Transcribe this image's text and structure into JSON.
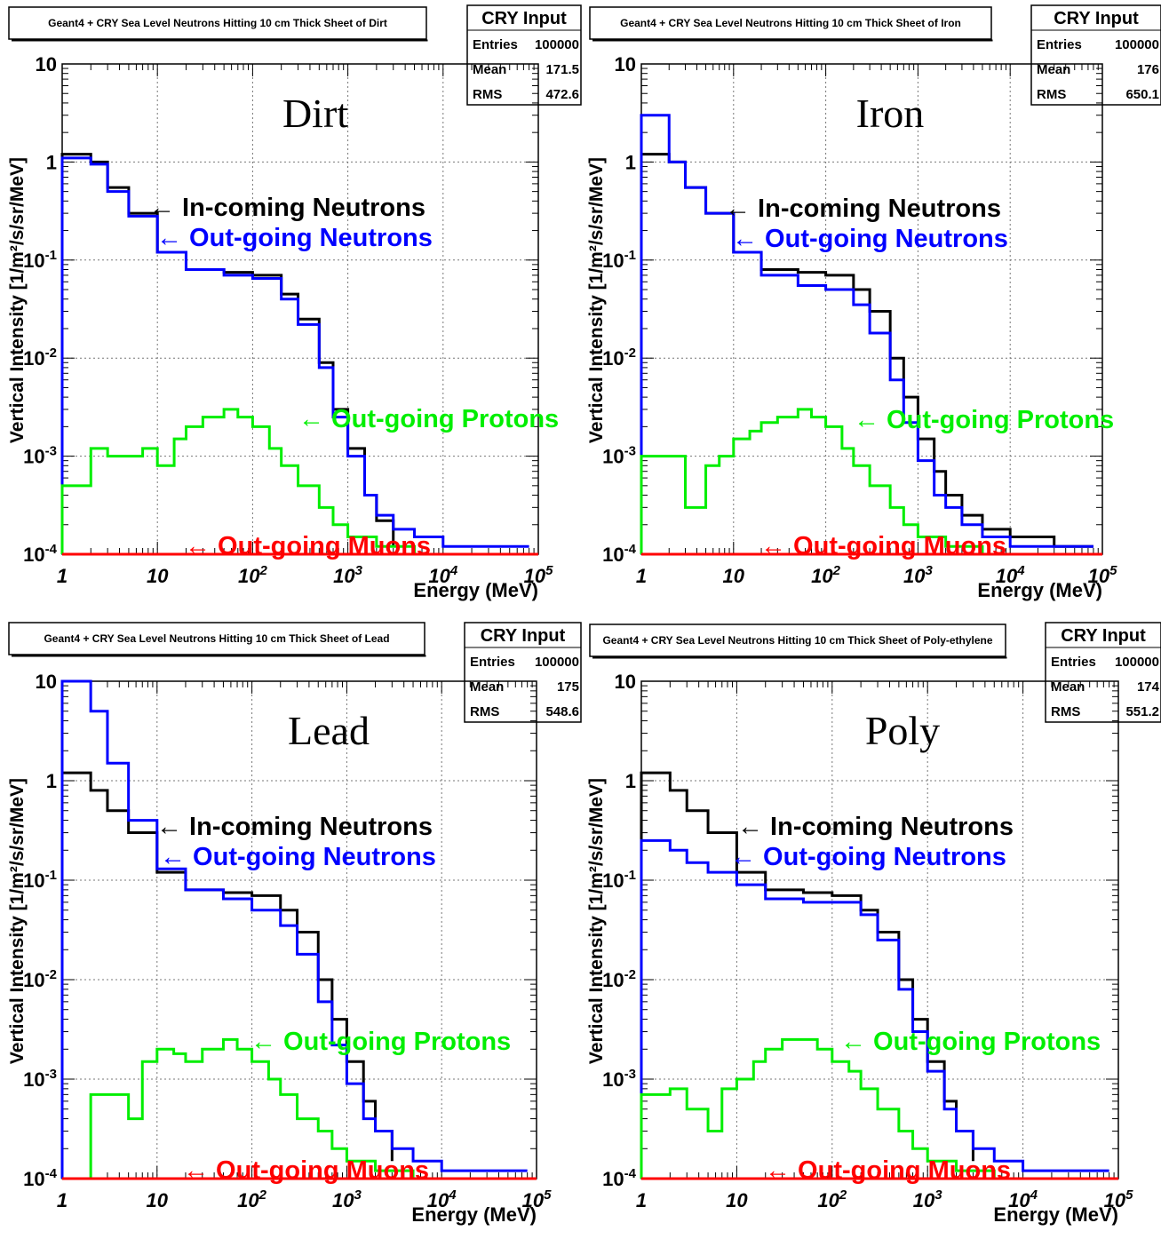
{
  "colors": {
    "incoming": "#000000",
    "outgoing_neutrons": "#0000ff",
    "outgoing_protons": "#00ee00",
    "outgoing_muons": "#ff0000",
    "grid": "#777777",
    "frame": "#000000"
  },
  "chart_data": [
    {
      "type": "line",
      "id": "dirt",
      "title": "Geant4 + CRY Sea Level Neutrons Hitting 10 cm Thick Sheet of Dirt",
      "material": "Dirt",
      "stats": {
        "header": "CRY Input",
        "entries_label": "Entries",
        "entries": "100000",
        "mean_label": "Mean",
        "mean": "171.5",
        "rms_label": "RMS",
        "rms": "472.6"
      },
      "xlabel": "Energy (MeV)",
      "ylabel": "Vertical Intensity [1/m²/s/sr/MeV]",
      "x_scale": "log",
      "y_scale": "log",
      "xlim": [
        1,
        100000
      ],
      "ylim": [
        0.0001,
        10
      ],
      "x_ticks": [
        {
          "base": "1",
          "exp": ""
        },
        {
          "base": "10",
          "exp": ""
        },
        {
          "base": "10",
          "exp": "2"
        },
        {
          "base": "10",
          "exp": "3"
        },
        {
          "base": "10",
          "exp": "4"
        },
        {
          "base": "10",
          "exp": "5"
        }
      ],
      "y_ticks": [
        {
          "base": "10",
          "exp": ""
        },
        {
          "base": "1",
          "exp": ""
        },
        {
          "base": "10",
          "exp": "-1"
        },
        {
          "base": "10",
          "exp": "-2"
        },
        {
          "base": "10",
          "exp": "-3"
        },
        {
          "base": "10",
          "exp": "-4"
        }
      ],
      "grid": true,
      "annotations": {
        "incoming": "← In-coming Neutrons",
        "neutrons": "← Out-going Neutrons",
        "protons": "← Out-going Protons",
        "muons": "← Out-going Muons"
      },
      "series": [
        {
          "key": "incoming",
          "x": [
            1,
            2,
            3,
            5,
            10,
            20,
            50,
            100,
            200,
            300,
            500,
            700,
            1000,
            1500,
            2000,
            3000
          ],
          "y": [
            1.2,
            1.0,
            0.55,
            0.3,
            0.12,
            0.08,
            0.075,
            0.07,
            0.045,
            0.025,
            0.009,
            0.003,
            0.0012,
            0.0004,
            0.00022,
            0.00012
          ]
        },
        {
          "key": "neutrons",
          "x": [
            1,
            2,
            3,
            5,
            10,
            20,
            50,
            100,
            200,
            300,
            500,
            700,
            1000,
            1500,
            2000,
            3000,
            5000,
            10000,
            30000,
            80000
          ],
          "y": [
            1.1,
            0.95,
            0.5,
            0.28,
            0.12,
            0.08,
            0.07,
            0.065,
            0.04,
            0.022,
            0.008,
            0.0025,
            0.001,
            0.0004,
            0.00025,
            0.00018,
            0.00015,
            0.00012,
            0.00012,
            0.00012
          ]
        },
        {
          "key": "protons",
          "x": [
            1,
            2,
            3,
            5,
            7,
            10,
            15,
            20,
            30,
            50,
            70,
            100,
            150,
            200,
            300,
            500,
            700,
            1000,
            2000,
            5000,
            20000,
            100000
          ],
          "y": [
            0.0005,
            0.0012,
            0.001,
            0.001,
            0.0012,
            0.0008,
            0.0015,
            0.002,
            0.0025,
            0.003,
            0.0025,
            0.002,
            0.0012,
            0.0008,
            0.0005,
            0.0003,
            0.0002,
            0.00015,
            0.00012,
            0.0001,
            0.0001,
            0.0001
          ]
        },
        {
          "key": "muons",
          "x": [
            1,
            100000
          ],
          "y": [
            0.0001,
            0.0001
          ]
        }
      ]
    },
    {
      "type": "line",
      "id": "iron",
      "title": "Geant4 + CRY Sea Level Neutrons Hitting 10 cm Thick Sheet of Iron",
      "material": "Iron",
      "stats": {
        "header": "CRY Input",
        "entries_label": "Entries",
        "entries": "100000",
        "mean_label": "Mean",
        "mean": "176",
        "rms_label": "RMS",
        "rms": "650.1"
      },
      "xlabel": "Energy (MeV)",
      "ylabel": "Vertical Intensity [1/m²/s/sr/MeV]",
      "x_scale": "log",
      "y_scale": "log",
      "xlim": [
        1,
        100000
      ],
      "ylim": [
        0.0001,
        10
      ],
      "x_ticks": [
        {
          "base": "1",
          "exp": ""
        },
        {
          "base": "10",
          "exp": ""
        },
        {
          "base": "10",
          "exp": "2"
        },
        {
          "base": "10",
          "exp": "3"
        },
        {
          "base": "10",
          "exp": "4"
        },
        {
          "base": "10",
          "exp": "5"
        }
      ],
      "y_ticks": [
        {
          "base": "10",
          "exp": ""
        },
        {
          "base": "1",
          "exp": ""
        },
        {
          "base": "10",
          "exp": "-1"
        },
        {
          "base": "10",
          "exp": "-2"
        },
        {
          "base": "10",
          "exp": "-3"
        },
        {
          "base": "10",
          "exp": "-4"
        }
      ],
      "grid": true,
      "annotations": {
        "incoming": "← In-coming Neutrons",
        "neutrons": "← Out-going Neutrons",
        "protons": "← Out-going Protons",
        "muons": "← Out-going Muons"
      },
      "series": [
        {
          "key": "incoming",
          "x": [
            1,
            2,
            3,
            5,
            10,
            20,
            50,
            100,
            200,
            300,
            500,
            700,
            1000,
            1500,
            2000,
            3000,
            5000,
            10000,
            30000,
            80000
          ],
          "y": [
            1.2,
            1.0,
            0.55,
            0.3,
            0.12,
            0.08,
            0.075,
            0.07,
            0.05,
            0.03,
            0.01,
            0.004,
            0.0015,
            0.0007,
            0.0004,
            0.00025,
            0.00018,
            0.00015,
            0.00012,
            0.00012
          ]
        },
        {
          "key": "neutrons",
          "x": [
            1,
            2,
            3,
            5,
            10,
            20,
            50,
            100,
            200,
            300,
            500,
            700,
            1000,
            1500,
            2000,
            3000,
            5000,
            10000,
            30000,
            80000
          ],
          "y": [
            3.0,
            1.0,
            0.55,
            0.3,
            0.12,
            0.07,
            0.055,
            0.05,
            0.035,
            0.018,
            0.006,
            0.0022,
            0.0009,
            0.0004,
            0.0003,
            0.0002,
            0.00015,
            0.00012,
            0.00012,
            0.00012
          ]
        },
        {
          "key": "protons",
          "x": [
            1,
            2,
            3,
            5,
            7,
            10,
            15,
            20,
            30,
            50,
            70,
            100,
            150,
            200,
            300,
            500,
            700,
            1000,
            2000,
            5000,
            20000,
            100000
          ],
          "y": [
            0.001,
            0.001,
            0.0003,
            0.0008,
            0.001,
            0.0015,
            0.0018,
            0.0022,
            0.0025,
            0.003,
            0.0025,
            0.002,
            0.0012,
            0.0008,
            0.0005,
            0.0003,
            0.0002,
            0.00015,
            0.00012,
            0.0001,
            0.0001,
            0.0001
          ]
        },
        {
          "key": "muons",
          "x": [
            1,
            100000
          ],
          "y": [
            0.0001,
            0.0001
          ]
        }
      ]
    },
    {
      "type": "line",
      "id": "lead",
      "title": "Geant4 + CRY Sea Level Neutrons Hitting 10 cm Thick Sheet of Lead",
      "material": "Lead",
      "stats": {
        "header": "CRY Input",
        "entries_label": "Entries",
        "entries": "100000",
        "mean_label": "Mean",
        "mean": "175",
        "rms_label": "RMS",
        "rms": "548.6"
      },
      "xlabel": "Energy (MeV)",
      "ylabel": "Vertical Intensity [1/m²/s/sr/MeV]",
      "x_scale": "log",
      "y_scale": "log",
      "xlim": [
        1,
        100000
      ],
      "ylim": [
        0.0001,
        10
      ],
      "x_ticks": [
        {
          "base": "1",
          "exp": ""
        },
        {
          "base": "10",
          "exp": ""
        },
        {
          "base": "10",
          "exp": "2"
        },
        {
          "base": "10",
          "exp": "3"
        },
        {
          "base": "10",
          "exp": "4"
        },
        {
          "base": "10",
          "exp": "5"
        }
      ],
      "y_ticks": [
        {
          "base": "10",
          "exp": ""
        },
        {
          "base": "1",
          "exp": ""
        },
        {
          "base": "10",
          "exp": "-1"
        },
        {
          "base": "10",
          "exp": "-2"
        },
        {
          "base": "10",
          "exp": "-3"
        },
        {
          "base": "10",
          "exp": "-4"
        }
      ],
      "grid": true,
      "annotations": {
        "incoming": "← In-coming Neutrons",
        "neutrons": "← Out-going Neutrons",
        "protons": "← Out-going Protons",
        "muons": "← Out-going Muons"
      },
      "series": [
        {
          "key": "incoming",
          "x": [
            1,
            2,
            3,
            5,
            10,
            20,
            50,
            100,
            200,
            300,
            500,
            700,
            1000,
            1500,
            2000,
            3000
          ],
          "y": [
            1.2,
            0.8,
            0.5,
            0.3,
            0.12,
            0.08,
            0.075,
            0.07,
            0.05,
            0.03,
            0.01,
            0.004,
            0.0015,
            0.0006,
            0.0003,
            0.00015
          ]
        },
        {
          "key": "neutrons",
          "x": [
            1,
            2,
            3,
            5,
            10,
            20,
            50,
            100,
            200,
            300,
            500,
            700,
            1000,
            1500,
            2000,
            3000,
            5000,
            10000,
            30000,
            80000
          ],
          "y": [
            10,
            5,
            1.5,
            0.4,
            0.13,
            0.08,
            0.065,
            0.05,
            0.035,
            0.018,
            0.006,
            0.0022,
            0.0009,
            0.0004,
            0.0003,
            0.0002,
            0.00015,
            0.00012,
            0.00012,
            0.00012
          ]
        },
        {
          "key": "protons",
          "x": [
            1,
            2,
            3,
            5,
            7,
            10,
            15,
            20,
            30,
            50,
            70,
            100,
            150,
            200,
            300,
            500,
            700,
            1000,
            2000,
            5000,
            20000,
            100000
          ],
          "y": [
            0.0001,
            0.0007,
            0.0007,
            0.0004,
            0.0015,
            0.002,
            0.0018,
            0.0015,
            0.002,
            0.0025,
            0.002,
            0.0015,
            0.001,
            0.0007,
            0.0004,
            0.0003,
            0.0002,
            0.00015,
            0.00012,
            0.0001,
            0.0001,
            0.0001
          ]
        },
        {
          "key": "muons",
          "x": [
            1,
            100000
          ],
          "y": [
            0.0001,
            0.0001
          ]
        }
      ]
    },
    {
      "type": "line",
      "id": "poly",
      "title": "Geant4 + CRY Sea Level Neutrons Hitting 10 cm Thick Sheet of Poly-ethylene",
      "material": "Poly",
      "stats": {
        "header": "CRY Input",
        "entries_label": "Entries",
        "entries": "100000",
        "mean_label": "Mean",
        "mean": "174",
        "rms_label": "RMS",
        "rms": "551.2"
      },
      "xlabel": "Energy (MeV)",
      "ylabel": "Vertical Intensity [1/m²/s/sr/MeV]",
      "x_scale": "log",
      "y_scale": "log",
      "xlim": [
        1,
        100000
      ],
      "ylim": [
        0.0001,
        10
      ],
      "x_ticks": [
        {
          "base": "1",
          "exp": ""
        },
        {
          "base": "10",
          "exp": ""
        },
        {
          "base": "10",
          "exp": "2"
        },
        {
          "base": "10",
          "exp": "3"
        },
        {
          "base": "10",
          "exp": "4"
        },
        {
          "base": "10",
          "exp": "5"
        }
      ],
      "y_ticks": [
        {
          "base": "10",
          "exp": ""
        },
        {
          "base": "1",
          "exp": ""
        },
        {
          "base": "10",
          "exp": "-1"
        },
        {
          "base": "10",
          "exp": "-2"
        },
        {
          "base": "10",
          "exp": "-3"
        },
        {
          "base": "10",
          "exp": "-4"
        }
      ],
      "grid": true,
      "annotations": {
        "incoming": "← In-coming Neutrons",
        "neutrons": "← Out-going Neutrons",
        "protons": "← Out-going Protons",
        "muons": "← Out-going Muons"
      },
      "series": [
        {
          "key": "incoming",
          "x": [
            1,
            2,
            3,
            5,
            10,
            20,
            50,
            100,
            200,
            300,
            500,
            700,
            1000,
            1500,
            2000,
            3000
          ],
          "y": [
            1.2,
            0.8,
            0.5,
            0.3,
            0.12,
            0.08,
            0.075,
            0.07,
            0.05,
            0.03,
            0.01,
            0.004,
            0.0015,
            0.0006,
            0.0003,
            0.00015
          ]
        },
        {
          "key": "neutrons",
          "x": [
            1,
            2,
            3,
            5,
            10,
            20,
            50,
            100,
            200,
            300,
            500,
            700,
            1000,
            1500,
            2000,
            3000,
            5000,
            10000,
            30000,
            80000
          ],
          "y": [
            0.25,
            0.2,
            0.15,
            0.12,
            0.09,
            0.065,
            0.06,
            0.06,
            0.045,
            0.025,
            0.008,
            0.003,
            0.0012,
            0.0005,
            0.0003,
            0.0002,
            0.00015,
            0.00012,
            0.00012,
            0.00012
          ]
        },
        {
          "key": "protons",
          "x": [
            1,
            2,
            3,
            5,
            7,
            10,
            15,
            20,
            30,
            50,
            70,
            100,
            150,
            200,
            300,
            500,
            700,
            1000,
            2000,
            5000,
            20000,
            100000
          ],
          "y": [
            0.0007,
            0.0008,
            0.0005,
            0.0003,
            0.0008,
            0.001,
            0.0015,
            0.002,
            0.0025,
            0.0025,
            0.002,
            0.0015,
            0.0012,
            0.0008,
            0.0005,
            0.0003,
            0.0002,
            0.00015,
            0.00012,
            0.0001,
            0.0001,
            0.0001
          ]
        },
        {
          "key": "muons",
          "x": [
            1,
            100000
          ],
          "y": [
            0.0001,
            0.0001
          ]
        }
      ]
    }
  ]
}
